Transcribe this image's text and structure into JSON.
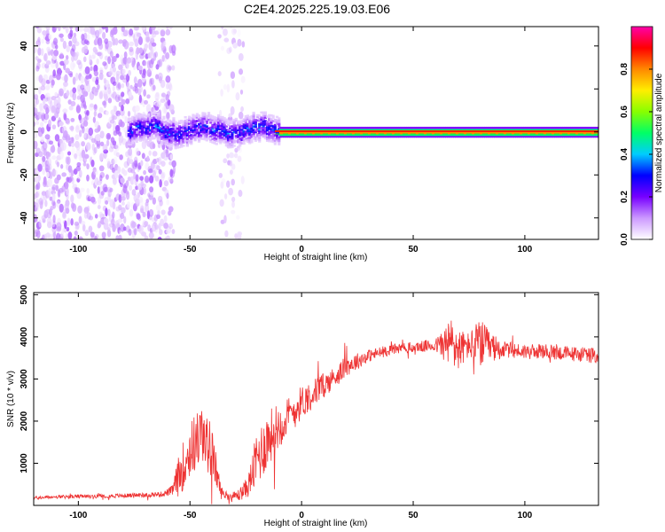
{
  "title": "C2E4.2025.225.19.03.E06",
  "colors": {
    "snr_line": "#ee3333",
    "axis": "#000000"
  },
  "chart_data": [
    {
      "type": "heatmap",
      "title": "C2E4.2025.225.19.03.E06",
      "xlabel": "Height of straight line (km)",
      "ylabel": "Frequency (Hz)",
      "xlim": [
        -120,
        133
      ],
      "ylim": [
        -50,
        49
      ],
      "xticks": [
        -100,
        -50,
        0,
        50,
        100
      ],
      "yticks": [
        -40,
        -20,
        0,
        20,
        40
      ],
      "colorbar": {
        "label": "Normalized spectral amplitude",
        "range": [
          0,
          1
        ],
        "ticks": [
          "0.0",
          "0.2",
          "0.4",
          "0.6",
          "0.8"
        ],
        "colormap": [
          "#ffffff",
          "#cc99ff",
          "#7700ff",
          "#0000ff",
          "#00ccff",
          "#00ff66",
          "#88ff00",
          "#ffee00",
          "#ff8800",
          "#ff0000",
          "#ff00aa"
        ]
      },
      "regions": [
        {
          "name": "noise",
          "x": [
            -120,
            -58
          ],
          "freq_span": [
            -50,
            49
          ],
          "amplitude": 0.08
        },
        {
          "name": "sparse-band",
          "x": [
            -36,
            -26
          ],
          "freq_span": [
            -50,
            49
          ],
          "amplitude": 0.05
        },
        {
          "name": "emerging-signal",
          "x": [
            -78,
            -10
          ],
          "freq_center": 1,
          "freq_halfwidth": 6,
          "amplitude": 0.3
        },
        {
          "name": "stable-carrier",
          "x": [
            -10,
            133
          ],
          "freq_center": 0,
          "freq_halfwidth": 2,
          "amplitude": 0.95
        }
      ]
    },
    {
      "type": "line",
      "xlabel": "Height of straight line (km)",
      "ylabel": "SNR (10 * v/v)",
      "xlim": [
        -120,
        133
      ],
      "ylim": [
        0,
        5050
      ],
      "xticks": [
        -100,
        -50,
        0,
        50,
        100
      ],
      "yticks": [
        1000,
        2000,
        3000,
        4000,
        5000
      ],
      "series": [
        {
          "x": [
            -120,
            -110,
            -100,
            -90,
            -80,
            -70,
            -62,
            -58,
            -55,
            -50,
            -45,
            -40,
            -36,
            -32,
            -28,
            -24,
            -20,
            -16,
            -12,
            -8,
            -4,
            0,
            5,
            10,
            15,
            20,
            30,
            40,
            50,
            60,
            68,
            70,
            75,
            80,
            84,
            90,
            100,
            110,
            120,
            133
          ],
          "values": [
            180,
            200,
            210,
            220,
            230,
            250,
            270,
            350,
            700,
            1300,
            1700,
            1200,
            300,
            200,
            250,
            450,
            1100,
            1500,
            1800,
            2000,
            2200,
            2450,
            2650,
            2850,
            3050,
            3300,
            3550,
            3700,
            3750,
            3800,
            3850,
            3700,
            3800,
            3850,
            3750,
            3700,
            3650,
            3650,
            3600,
            3550
          ],
          "noise": [
            40,
            40,
            45,
            45,
            50,
            60,
            60,
            120,
            500,
            700,
            700,
            600,
            150,
            80,
            150,
            250,
            700,
            700,
            600,
            500,
            450,
            400,
            350,
            300,
            250,
            250,
            150,
            130,
            130,
            150,
            700,
            500,
            300,
            600,
            400,
            200,
            180,
            180,
            180,
            180
          ]
        }
      ]
    }
  ]
}
